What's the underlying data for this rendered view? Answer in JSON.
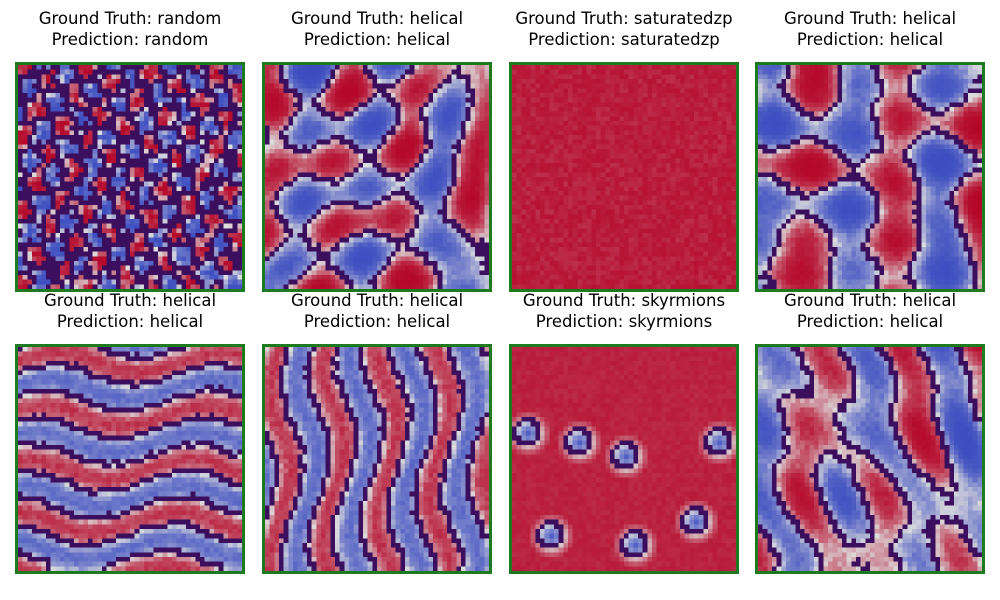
{
  "figure": {
    "colors": {
      "correct_border": "#1e7a1e",
      "map_low": "#3b4cc0",
      "map_high": "#b40426",
      "contour": "#3b0f5e"
    },
    "panels": [
      {
        "ground_truth": "Ground Truth: random",
        "prediction": "Prediction: random",
        "pattern": "random"
      },
      {
        "ground_truth": "Ground Truth: helical",
        "prediction": "Prediction: helical",
        "pattern": "helical"
      },
      {
        "ground_truth": "Ground Truth: saturatedzp",
        "prediction": "Prediction: saturatedzp",
        "pattern": "saturatedzp"
      },
      {
        "ground_truth": "Ground Truth: helical",
        "prediction": "Prediction: helical",
        "pattern": "helical"
      },
      {
        "ground_truth": "Ground Truth: helical",
        "prediction": "Prediction: helical",
        "pattern": "stripes-horizontal"
      },
      {
        "ground_truth": "Ground Truth: helical",
        "prediction": "Prediction: helical",
        "pattern": "stripes-vertical"
      },
      {
        "ground_truth": "Ground Truth: skyrmions",
        "prediction": "Prediction: skyrmions",
        "pattern": "skyrmions"
      },
      {
        "ground_truth": "Ground Truth: helical",
        "prediction": "Prediction: helical",
        "pattern": "helical"
      }
    ]
  }
}
